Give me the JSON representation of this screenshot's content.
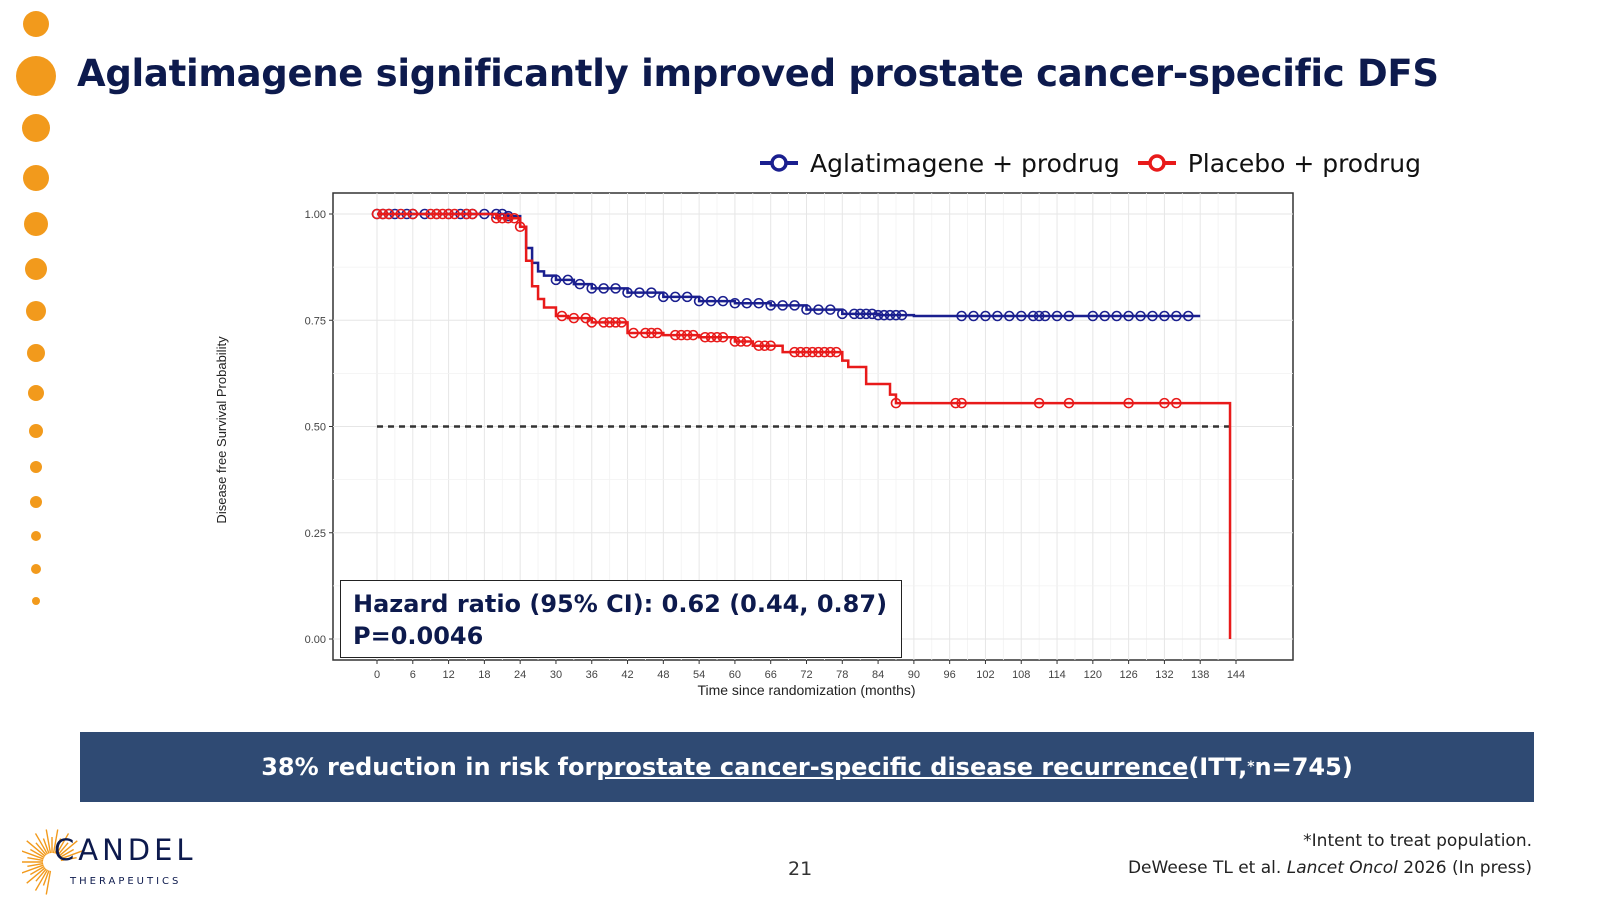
{
  "slide": {
    "title": "Aglatimagene significantly improved prostate cancer-specific DFS",
    "page_number": "21",
    "hazard_line1": "Hazard ratio (95% CI): 0.62 (0.44, 0.87)",
    "hazard_line2": "P=0.0046",
    "banner_pre": "38% reduction in risk for ",
    "banner_link": "prostate cancer-specific disease recurrence ",
    "banner_post_a": "(ITT,",
    "banner_sup": "*",
    "banner_post_b": " n=745)",
    "footnote1": "*Intent to treat population.",
    "footnote2_pre": "DeWeese TL et al. ",
    "footnote2_journal": "Lancet Oncol",
    "footnote2_post": " 2026 (In press)",
    "logo_name": "CANDEL",
    "logo_sub": "THERAPEUTICS",
    "colors": {
      "navy": "#0d1a4d",
      "banner": "#2f4a73",
      "orange": "#f29a1c",
      "blue_series": "#1a1f8f",
      "red_series": "#e81a1a"
    }
  },
  "chart_data": {
    "type": "line",
    "subtype": "kaplan-meier step",
    "xlabel": "Time since randomization (months)",
    "ylabel": "Disease free Survival Probability",
    "xlim": [
      0,
      144
    ],
    "ylim": [
      0,
      1
    ],
    "xticks": [
      0,
      6,
      12,
      18,
      24,
      30,
      36,
      42,
      48,
      54,
      60,
      66,
      72,
      78,
      84,
      90,
      96,
      102,
      108,
      114,
      120,
      126,
      132,
      138,
      144
    ],
    "yticks": [
      0.0,
      0.25,
      0.5,
      0.75,
      1.0
    ],
    "ytick_labels": [
      "0.00",
      "0.25",
      "0.50",
      "0.75",
      "1.00"
    ],
    "grid": true,
    "legend_position": "top-right",
    "reference_line": {
      "y": 0.5,
      "style": "dashed"
    },
    "series": [
      {
        "name": "Aglatimagene + prodrug",
        "color": "#1a1f8f",
        "x": [
          0,
          22,
          24,
          25,
          26,
          27,
          28,
          30,
          33,
          36,
          42,
          48,
          54,
          60,
          66,
          72,
          78,
          84,
          90,
          138
        ],
        "y": [
          1.0,
          0.995,
          0.97,
          0.92,
          0.885,
          0.865,
          0.855,
          0.845,
          0.835,
          0.825,
          0.815,
          0.805,
          0.795,
          0.79,
          0.785,
          0.775,
          0.765,
          0.762,
          0.76,
          0.76
        ],
        "censored_x": [
          0,
          1,
          2,
          3,
          5,
          6,
          8,
          10,
          12,
          14,
          15,
          16,
          18,
          20,
          21,
          22,
          30,
          32,
          34,
          36,
          38,
          40,
          42,
          44,
          46,
          48,
          50,
          52,
          54,
          56,
          58,
          60,
          62,
          64,
          66,
          68,
          70,
          72,
          74,
          76,
          78,
          80,
          81,
          82,
          83,
          84,
          85,
          86,
          87,
          88,
          98,
          100,
          102,
          104,
          106,
          108,
          110,
          111,
          112,
          114,
          116,
          120,
          122,
          124,
          126,
          128,
          130,
          132,
          134,
          136
        ]
      },
      {
        "name": "Placebo + prodrug",
        "color": "#e81a1a",
        "x": [
          0,
          20,
          24,
          25,
          26,
          27,
          28,
          30,
          32,
          36,
          42,
          48,
          54,
          60,
          63,
          68,
          78,
          79,
          82,
          86,
          87,
          143,
          143
        ],
        "y": [
          1.0,
          0.99,
          0.97,
          0.89,
          0.83,
          0.8,
          0.78,
          0.76,
          0.755,
          0.745,
          0.72,
          0.715,
          0.71,
          0.7,
          0.69,
          0.675,
          0.655,
          0.64,
          0.6,
          0.575,
          0.555,
          0.555,
          0.0
        ],
        "censored_x": [
          0,
          1,
          2,
          4,
          6,
          9,
          10,
          11,
          12,
          13,
          15,
          16,
          20,
          21,
          22,
          23,
          24,
          31,
          33,
          35,
          36,
          38,
          39,
          40,
          41,
          43,
          45,
          46,
          47,
          50,
          51,
          52,
          53,
          55,
          56,
          57,
          58,
          60,
          61,
          62,
          64,
          65,
          66,
          70,
          71,
          72,
          73,
          74,
          75,
          76,
          77,
          87,
          97,
          98,
          111,
          116,
          126,
          132,
          134
        ]
      }
    ]
  }
}
